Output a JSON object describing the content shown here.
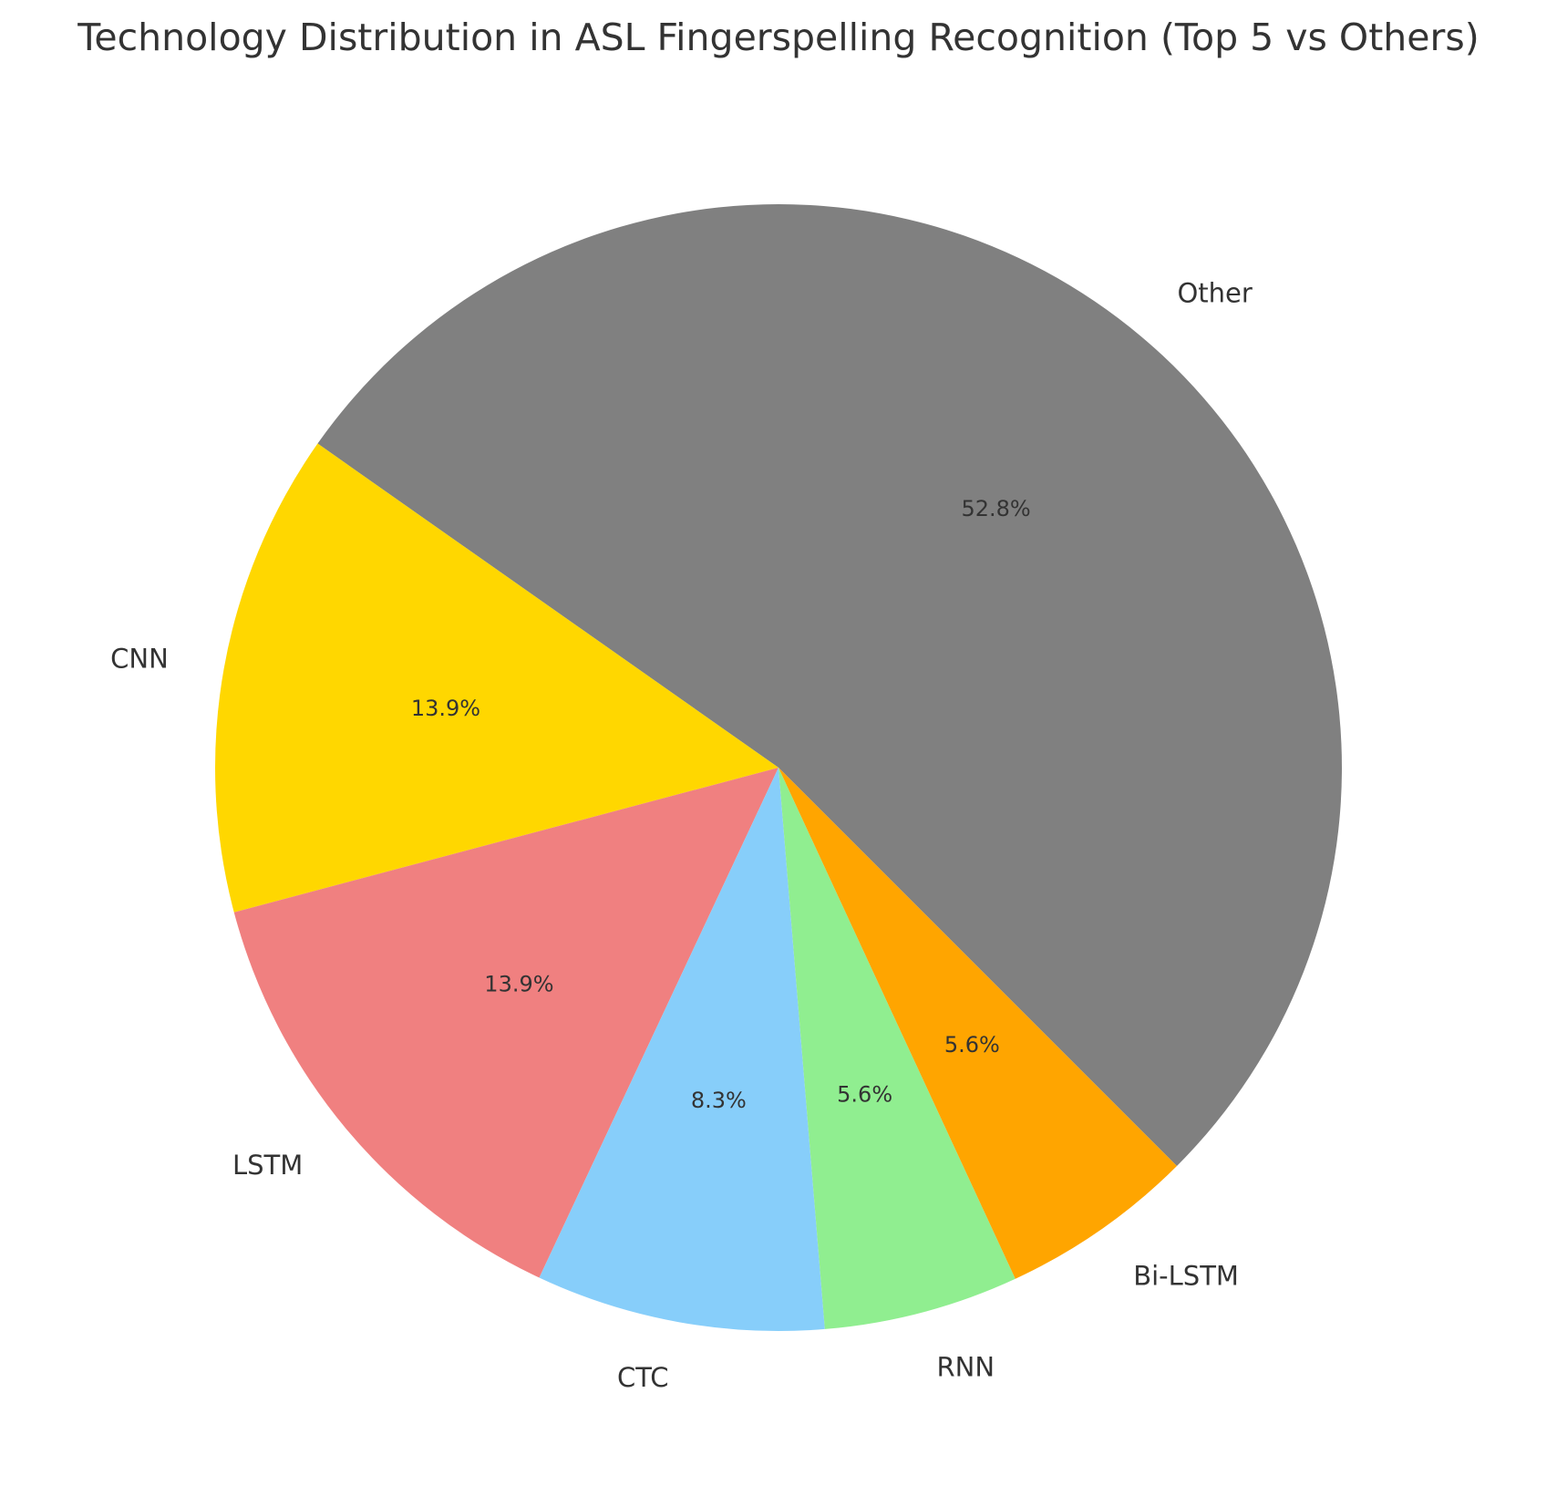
{
  "chart_data": {
    "type": "pie",
    "title": "Technology Distribution in ASL Fingerspelling Recognition (Top 5 vs Others)",
    "slices": [
      {
        "label": "Other",
        "value": 52.8,
        "value_label": "52.8%",
        "color": "#808080"
      },
      {
        "label": "CNN",
        "value": 13.9,
        "value_label": "13.9%",
        "color": "#FFD700"
      },
      {
        "label": "LSTM",
        "value": 13.9,
        "value_label": "13.9%",
        "color": "#F08080"
      },
      {
        "label": "CTC",
        "value": 8.3,
        "value_label": "8.3%",
        "color": "#87CEFA"
      },
      {
        "label": "RNN",
        "value": 5.6,
        "value_label": "5.6%",
        "color": "#90EE90"
      },
      {
        "label": "Bi-LSTM",
        "value": 5.6,
        "value_label": "5.6%",
        "color": "#FFA500"
      }
    ],
    "start_angle_deg": -45,
    "direction": "counterclockwise",
    "legend": "none"
  }
}
